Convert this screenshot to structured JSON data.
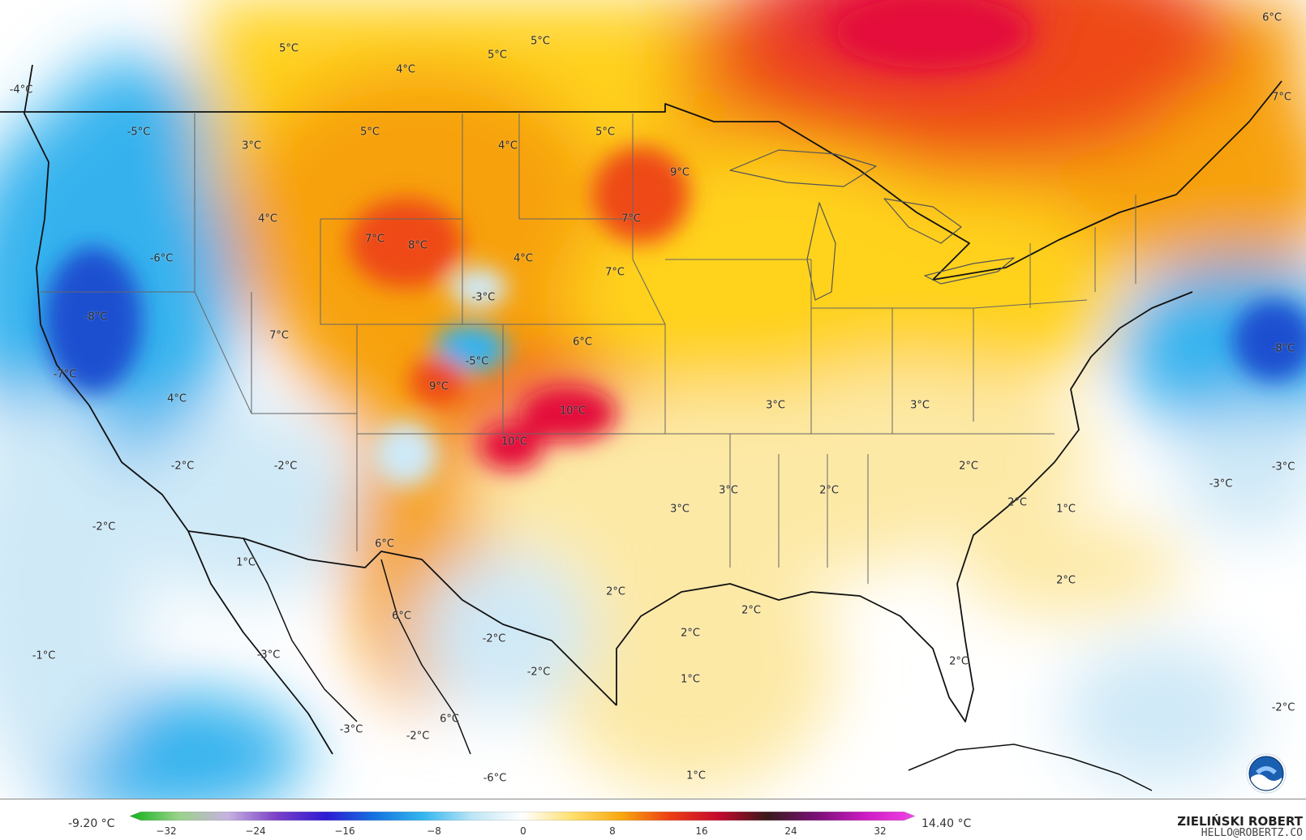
{
  "map": {
    "temperature_labels": [
      "5°C",
      "4°C",
      "5°C",
      "5°C",
      "6°C",
      "7°C",
      "-4°C",
      "-5°C",
      "3°C",
      "5°C",
      "4°C",
      "5°C",
      "9°C",
      "4°C",
      "7°C",
      "8°C",
      "-6°C",
      "4°C",
      "7°C",
      "7°C",
      "-3°C",
      "-8°C",
      "7°C",
      "-5°C",
      "6°C",
      "-8°C",
      "-7°C",
      "9°C",
      "4°C",
      "10°C",
      "3°C",
      "3°C",
      "10°C",
      "-2°C",
      "-2°C",
      "2°C",
      "3°C",
      "2°C",
      "2°C",
      "-3°C",
      "-3°C",
      "-2°C",
      "3°C",
      "1°C",
      "6°C",
      "1°C",
      "2°C",
      "2°C",
      "2°C",
      "6°C",
      "-2°C",
      "2°C",
      "-1°C",
      "-3°C",
      "-2°C",
      "1°C",
      "2°C",
      "6°C",
      "-3°C",
      "-2°C",
      "-2°C",
      "1°C",
      "-6°C"
    ],
    "colors": {
      "cold_deep": "#1a4fd0",
      "cold": "#35b2ee",
      "cool": "#cfe9f7",
      "neutral": "#ffffff",
      "mild": "#fde9a6",
      "warm": "#ffd21a",
      "hot": "#f7a10b",
      "very_hot": "#ee4a12",
      "extreme": "#e4083a"
    },
    "logo_icon": "noaa-logo"
  },
  "legend": {
    "min_label": "-9.20 °C",
    "max_label": "14.40 °C",
    "ticks": [
      "−32",
      "−24",
      "−16",
      "−8",
      "0",
      "8",
      "16",
      "24",
      "32"
    ],
    "stops": [
      "#12b21a",
      "#9ad28a",
      "#c6b2e0",
      "#7a3fc8",
      "#2d1ad2",
      "#1574e0",
      "#36b8ee",
      "#bfe6f6",
      "#ffffff",
      "#ffe070",
      "#f8a90f",
      "#ec3f14",
      "#c4082e",
      "#3a1a1a",
      "#7a1078",
      "#cd1cc4",
      "#f045e6"
    ]
  },
  "credit": {
    "name": "ZIELIŃSKI ROBERT",
    "email": "HELLO@ROBERTZ.CO"
  }
}
